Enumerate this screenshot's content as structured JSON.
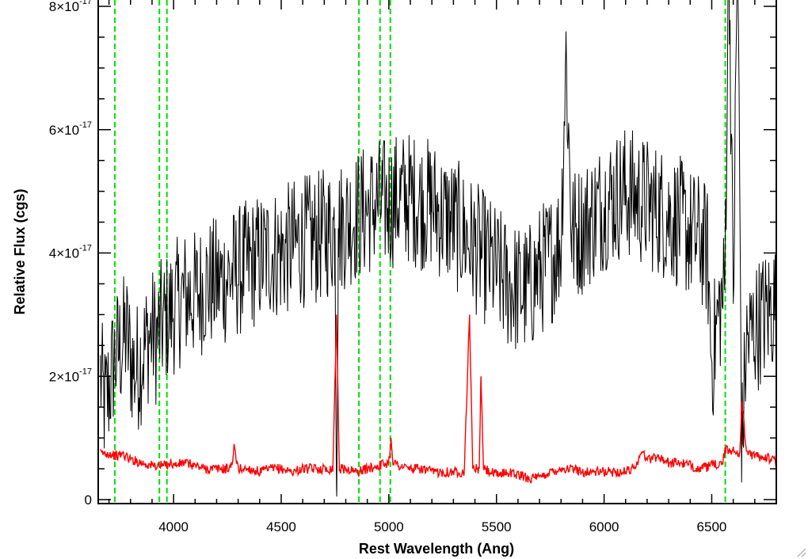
{
  "chart_data": {
    "type": "line",
    "title": "",
    "xlabel": "Rest Wavelength (Ang)",
    "ylabel": "Relative Flux (cgs)",
    "xlim": [
      3650,
      6800
    ],
    "ylim": [
      0,
      8.1e-17
    ],
    "x_ticks": [
      {
        "value": 4000,
        "label": "4000"
      },
      {
        "value": 4500,
        "label": "4500"
      },
      {
        "value": 5000,
        "label": "5000"
      },
      {
        "value": 5500,
        "label": "5500"
      },
      {
        "value": 6000,
        "label": "6000"
      },
      {
        "value": 6500,
        "label": "6500"
      }
    ],
    "y_ticks": [
      {
        "value": 0,
        "label": "0",
        "mantissa": "",
        "exponent": ""
      },
      {
        "value": 2e-17,
        "label": "2×10",
        "mantissa": "2×10",
        "exponent": "-17"
      },
      {
        "value": 4e-17,
        "label": "4×10",
        "mantissa": "4×10",
        "exponent": "-17"
      },
      {
        "value": 6e-17,
        "label": "6×10",
        "mantissa": "6×10",
        "exponent": "-17"
      },
      {
        "value": 8e-17,
        "label": "8×10",
        "mantissa": "8×10",
        "exponent": "-17"
      }
    ],
    "grid": false,
    "reference_lines": {
      "color": "#00e000",
      "style": "dashed",
      "x": [
        3727,
        3934,
        3969,
        4861,
        4959,
        5007,
        6563
      ]
    },
    "series": [
      {
        "color": "#000000",
        "x": [
          3660,
          3680,
          3700,
          3720,
          3740,
          3760,
          3780,
          3800,
          3820,
          3840,
          3860,
          3880,
          3900,
          3920,
          3940,
          3960,
          3980,
          4000,
          4050,
          4100,
          4150,
          4200,
          4250,
          4300,
          4350,
          4400,
          4450,
          4500,
          4550,
          4600,
          4650,
          4700,
          4750,
          4757,
          4765,
          4800,
          4850,
          4900,
          4950,
          5000,
          5050,
          5100,
          5150,
          5200,
          5250,
          5300,
          5350,
          5400,
          5450,
          5500,
          5550,
          5600,
          5650,
          5700,
          5750,
          5800,
          5822,
          5850,
          5900,
          5950,
          6000,
          6050,
          6100,
          6150,
          6200,
          6250,
          6300,
          6350,
          6400,
          6450,
          6480,
          6500,
          6530,
          6560,
          6580,
          6600,
          6620,
          6640,
          6660,
          6700,
          6750,
          6800
        ],
        "y": [
          2e-17,
          1.5e-17,
          1.8e-17,
          2.2e-17,
          2.4e-17,
          2.5e-17,
          2.7e-17,
          2.3e-17,
          2.1e-17,
          2.2e-17,
          2.4e-17,
          2.6e-17,
          2.7e-17,
          2.6e-17,
          2.8e-17,
          2.9e-17,
          3e-17,
          3.1e-17,
          3.3e-17,
          3.3e-17,
          3.5e-17,
          3.5e-17,
          3.6e-17,
          3.7e-17,
          3.8e-17,
          3.9e-17,
          4e-17,
          4e-17,
          4.1e-17,
          4.2e-17,
          4.2e-17,
          4.3e-17,
          4.4e-17,
          2e-18,
          4.4e-17,
          4.5e-17,
          4.6e-17,
          4.7e-17,
          4.8e-17,
          4.8e-17,
          4.9e-17,
          4.9e-17,
          4.8e-17,
          4.8e-17,
          4.6e-17,
          4.5e-17,
          4.3e-17,
          4.1e-17,
          3.9e-17,
          3.7e-17,
          3.5e-17,
          3.4e-17,
          3.4e-17,
          3.7e-17,
          3.9e-17,
          4.2e-17,
          7.3e-17,
          4.3e-17,
          4.4e-17,
          4.6e-17,
          4.8e-17,
          4.9e-17,
          5e-17,
          4.9e-17,
          4.8e-17,
          4.7e-17,
          4.6e-17,
          4.5e-17,
          4.3e-17,
          4.2e-17,
          4e-17,
          2.2e-17,
          3e-17,
          3.4e-17,
          9e-17,
          3.2e-17,
          9e-17,
          8e-18,
          2.5e-17,
          2.8e-17,
          3e-17,
          3.2e-17
        ]
      },
      {
        "color": "#ff0000",
        "x": [
          3660,
          3700,
          3740,
          3760,
          3800,
          3850,
          3900,
          3950,
          3990,
          4000,
          4050,
          4100,
          4150,
          4200,
          4250,
          4270,
          4280,
          4300,
          4350,
          4400,
          4450,
          4500,
          4550,
          4600,
          4650,
          4700,
          4740,
          4757,
          4770,
          4800,
          4850,
          4900,
          4950,
          5000,
          5010,
          5020,
          5050,
          5100,
          5150,
          5200,
          5250,
          5300,
          5350,
          5375,
          5390,
          5420,
          5428,
          5440,
          5500,
          5550,
          5600,
          5650,
          5700,
          5750,
          5800,
          5850,
          5900,
          5950,
          6000,
          6050,
          6100,
          6150,
          6170,
          6200,
          6250,
          6300,
          6350,
          6400,
          6450,
          6500,
          6550,
          6563,
          6600,
          6630,
          6640,
          6660,
          6700,
          6750,
          6800
        ],
        "y": [
          7.5e-18,
          7.5e-18,
          7e-18,
          7.5e-18,
          6.5e-18,
          6e-18,
          5.5e-18,
          5.5e-18,
          6e-18,
          5.5e-18,
          6e-18,
          5.5e-18,
          5e-18,
          5e-18,
          5e-18,
          5.5e-18,
          8.5e-18,
          5e-18,
          5e-18,
          4.5e-18,
          5e-18,
          5e-18,
          4.5e-18,
          5e-18,
          5e-18,
          5e-18,
          5e-18,
          3e-17,
          5e-18,
          5e-18,
          4.5e-18,
          5e-18,
          5.5e-18,
          6e-18,
          1e-17,
          6e-18,
          5.5e-18,
          5e-18,
          5e-18,
          4.5e-18,
          4.5e-18,
          4.5e-18,
          4.5e-18,
          3e-17,
          5e-18,
          5e-18,
          2e-17,
          5e-18,
          4e-18,
          4.5e-18,
          4e-18,
          3.5e-18,
          3.5e-18,
          4.5e-18,
          5e-18,
          5e-18,
          4.5e-18,
          4.5e-18,
          4.5e-18,
          4.5e-18,
          4.5e-18,
          5.5e-18,
          8e-18,
          6.5e-18,
          7e-18,
          6e-18,
          6e-18,
          5.5e-18,
          5e-18,
          5.5e-18,
          6e-18,
          8e-18,
          8e-18,
          7.5e-18,
          1.6e-17,
          8e-18,
          7e-18,
          7e-18,
          6e-18
        ]
      }
    ]
  }
}
